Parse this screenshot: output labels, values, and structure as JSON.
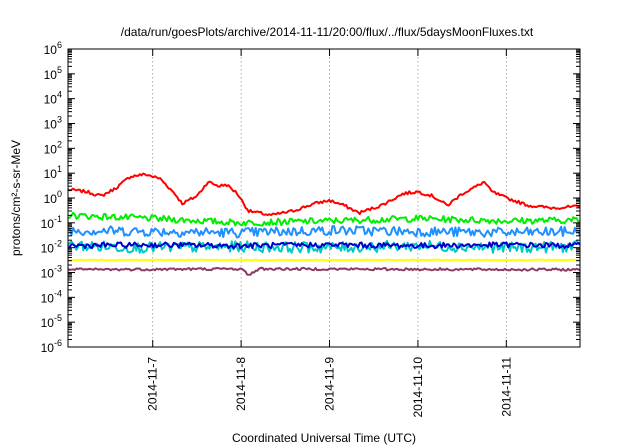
{
  "chart_data": {
    "type": "line",
    "title": "/data/run/goesPlots/archive/2014-11-11/20:00/flux/../flux/5daysMoonFluxes.txt",
    "xlabel": "Coordinated Universal Time (UTC)",
    "ylabel": "protons/cm²-s-sr-MeV",
    "y_scale": "log",
    "ylim": [
      1e-06,
      1000000.0
    ],
    "xlim": [
      "2014-11-06T01:00",
      "2014-11-11T20:00"
    ],
    "y_ticks": [
      {
        "label": "10",
        "exp": "-6",
        "value": 1e-06
      },
      {
        "label": "10",
        "exp": "-5",
        "value": 1e-05
      },
      {
        "label": "10",
        "exp": "-4",
        "value": 0.0001
      },
      {
        "label": "10",
        "exp": "-3",
        "value": 0.001
      },
      {
        "label": "10",
        "exp": "-2",
        "value": 0.01
      },
      {
        "label": "10",
        "exp": "-1",
        "value": 0.1
      },
      {
        "label": "10",
        "exp": "0",
        "value": 1
      },
      {
        "label": "10",
        "exp": "1",
        "value": 10
      },
      {
        "label": "10",
        "exp": "2",
        "value": 100
      },
      {
        "label": "10",
        "exp": "3",
        "value": 1000
      },
      {
        "label": "10",
        "exp": "4",
        "value": 10000
      },
      {
        "label": "10",
        "exp": "5",
        "value": 100000
      },
      {
        "label": "10",
        "exp": "6",
        "value": 1000000
      }
    ],
    "x_ticks": [
      "2014-11-7",
      "2014-11-8",
      "2014-11-9",
      "2014-11-10",
      "2014-11-11"
    ],
    "x_tick_dates": [
      "2014-11-07T00:00",
      "2014-11-08T00:00",
      "2014-11-09T00:00",
      "2014-11-10T00:00",
      "2014-11-11T00:00"
    ],
    "grid": true,
    "legend": "none",
    "series": [
      {
        "color": "#ff0000",
        "noise": 0.06,
        "points": [
          [
            "2014-11-06T01:00",
            2.2
          ],
          [
            "2014-11-06T06:00",
            1.8
          ],
          [
            "2014-11-06T10:00",
            1.2
          ],
          [
            "2014-11-06T14:00",
            2.5
          ],
          [
            "2014-11-06T18:00",
            7.5
          ],
          [
            "2014-11-06T22:00",
            9
          ],
          [
            "2014-11-07T02:00",
            6
          ],
          [
            "2014-11-07T06:00",
            1.5
          ],
          [
            "2014-11-07T08:00",
            0.6
          ],
          [
            "2014-11-07T12:00",
            1.2
          ],
          [
            "2014-11-07T15:00",
            4.5
          ],
          [
            "2014-11-07T18:00",
            3
          ],
          [
            "2014-11-07T20:00",
            3.5
          ],
          [
            "2014-11-07T23:00",
            1.5
          ],
          [
            "2014-11-08T02:00",
            0.3
          ],
          [
            "2014-11-08T05:00",
            0.25
          ],
          [
            "2014-11-08T08:00",
            0.2
          ],
          [
            "2014-11-08T14:00",
            0.3
          ],
          [
            "2014-11-08T20:00",
            0.6
          ],
          [
            "2014-11-09T00:00",
            0.8
          ],
          [
            "2014-11-09T04:00",
            0.5
          ],
          [
            "2014-11-09T08:00",
            0.25
          ],
          [
            "2014-11-09T14:00",
            0.5
          ],
          [
            "2014-11-09T20:00",
            1.5
          ],
          [
            "2014-11-10T00:00",
            1.8
          ],
          [
            "2014-11-10T04:00",
            1.2
          ],
          [
            "2014-11-10T08:00",
            0.5
          ],
          [
            "2014-11-10T12:00",
            1.5
          ],
          [
            "2014-11-10T16:00",
            3
          ],
          [
            "2014-11-10T18:00",
            4.5
          ],
          [
            "2014-11-10T20:00",
            1.8
          ],
          [
            "2014-11-11T00:00",
            1
          ],
          [
            "2014-11-11T06:00",
            0.5
          ],
          [
            "2014-11-11T12:00",
            0.4
          ],
          [
            "2014-11-11T20:00",
            0.45
          ]
        ]
      },
      {
        "color": "#00ee00",
        "noise": 0.13,
        "points": [
          [
            "2014-11-06T01:00",
            0.2
          ],
          [
            "2014-11-07T00:00",
            0.15
          ],
          [
            "2014-11-08T00:00",
            0.1
          ],
          [
            "2014-11-09T00:00",
            0.12
          ],
          [
            "2014-11-10T00:00",
            0.15
          ],
          [
            "2014-11-11T00:00",
            0.12
          ],
          [
            "2014-11-11T20:00",
            0.13
          ]
        ]
      },
      {
        "color": "#1e90ff",
        "noise": 0.2,
        "points": [
          [
            "2014-11-06T01:00",
            0.05
          ],
          [
            "2014-11-07T00:00",
            0.045
          ],
          [
            "2014-11-08T00:00",
            0.04
          ],
          [
            "2014-11-09T00:00",
            0.05
          ],
          [
            "2014-11-10T00:00",
            0.045
          ],
          [
            "2014-11-11T00:00",
            0.04
          ],
          [
            "2014-11-11T20:00",
            0.045
          ]
        ]
      },
      {
        "color": "#00c8c8",
        "noise": 0.22,
        "points": [
          [
            "2014-11-06T01:00",
            0.012
          ],
          [
            "2014-11-07T00:00",
            0.01
          ],
          [
            "2014-11-08T00:00",
            0.011
          ],
          [
            "2014-11-09T00:00",
            0.01
          ],
          [
            "2014-11-10T00:00",
            0.012
          ],
          [
            "2014-11-11T00:00",
            0.01
          ],
          [
            "2014-11-11T20:00",
            0.011
          ]
        ]
      },
      {
        "color": "#0000cd",
        "noise": 0.11,
        "points": [
          [
            "2014-11-06T01:00",
            0.012
          ],
          [
            "2014-11-07T00:00",
            0.013
          ],
          [
            "2014-11-08T00:00",
            0.012
          ],
          [
            "2014-11-09T00:00",
            0.013
          ],
          [
            "2014-11-10T00:00",
            0.012
          ],
          [
            "2014-11-11T00:00",
            0.013
          ],
          [
            "2014-11-11T20:00",
            0.012
          ]
        ]
      },
      {
        "color": "#ffff00",
        "noise": 0.02,
        "points": [
          [
            "2014-11-06T01:00",
            0.0032
          ],
          [
            "2014-11-11T20:00",
            0.0032
          ]
        ]
      },
      {
        "color": "#8b3a62",
        "noise": 0.05,
        "points": [
          [
            "2014-11-06T01:00",
            0.0013
          ],
          [
            "2014-11-08T00:00",
            0.0014
          ],
          [
            "2014-11-08T02:00",
            0.0008
          ],
          [
            "2014-11-08T05:00",
            0.0014
          ],
          [
            "2014-11-11T20:00",
            0.0013
          ]
        ]
      }
    ]
  }
}
